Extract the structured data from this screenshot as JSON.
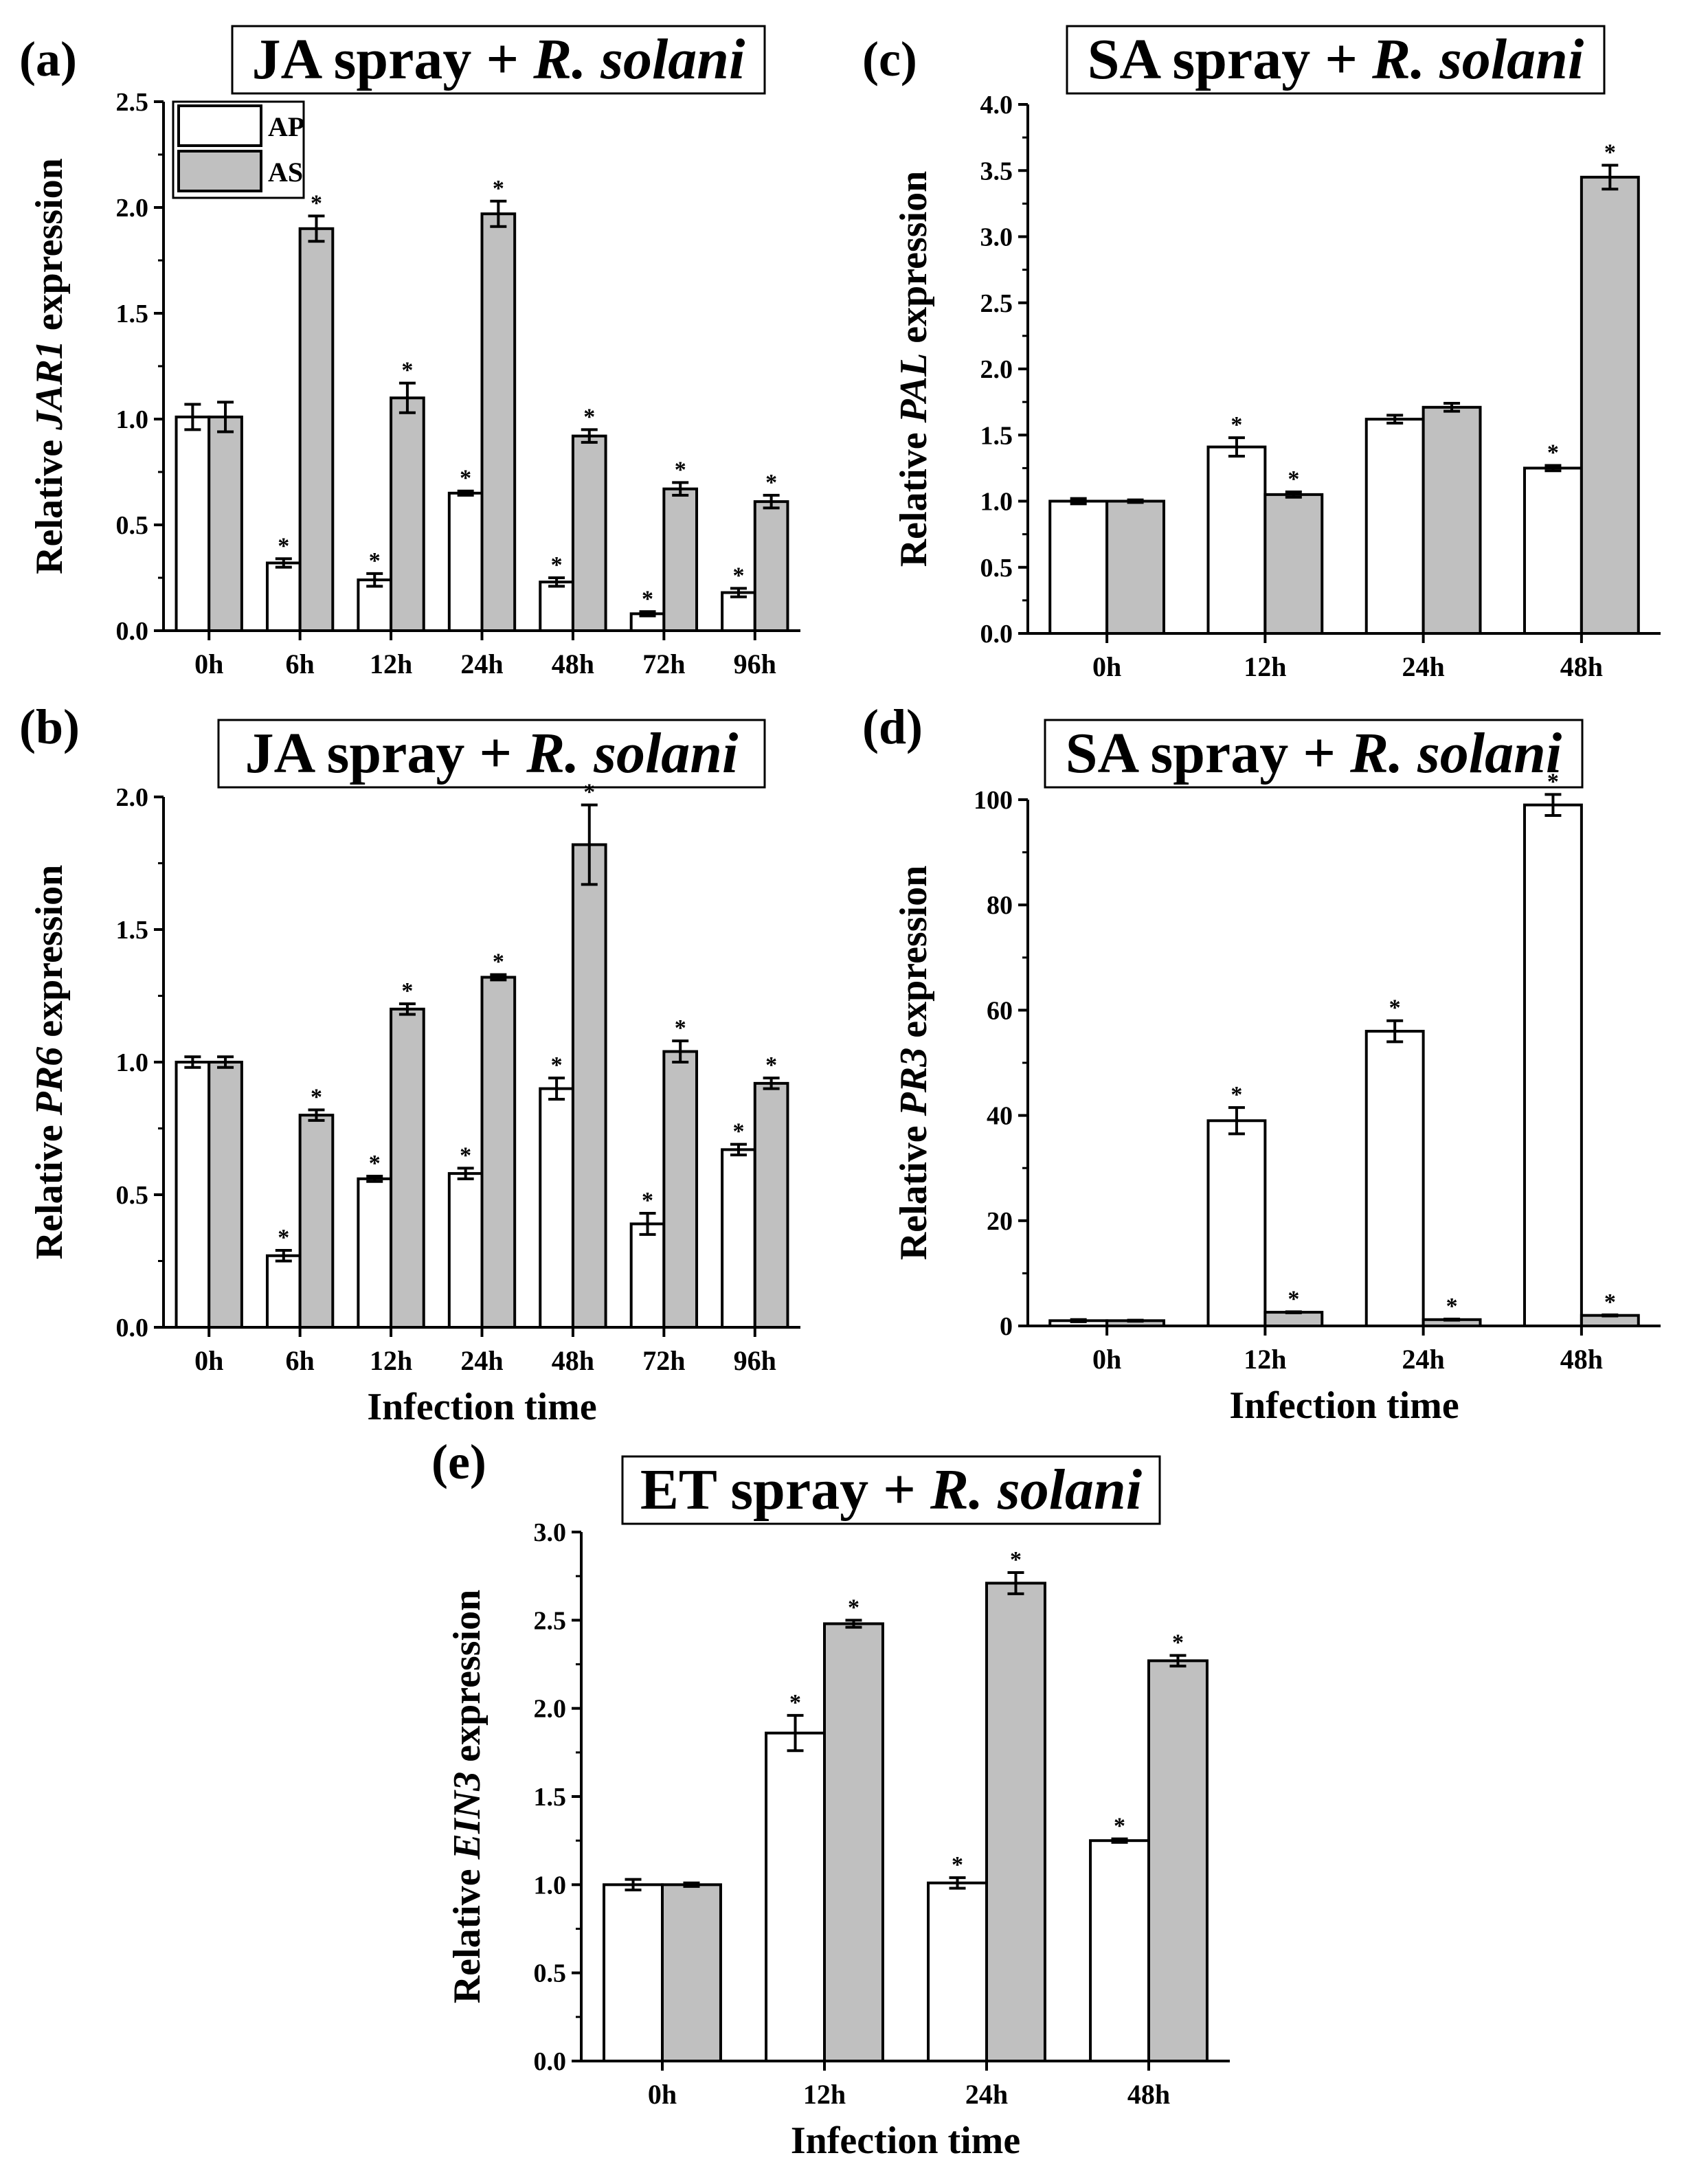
{
  "colors": {
    "ap_fill": "#ffffff",
    "as_fill": "#c0c0c0",
    "stroke": "#000000"
  },
  "chart_data": [
    {
      "id": "a",
      "type": "bar",
      "panel_label": "(a)",
      "title_prefix": "JA spray + ",
      "title_italic": "R. solani",
      "ylabel_prefix": "Relative ",
      "ylabel_italic": "JAR1",
      "ylabel_suffix": " expression",
      "xlabel": "",
      "categories": [
        "0h",
        "6h",
        "12h",
        "24h",
        "48h",
        "72h",
        "96h"
      ],
      "ylim": [
        0,
        2.5
      ],
      "yticks": [
        "0.0",
        "0.5",
        "1.0",
        "1.5",
        "2.0",
        "2.5"
      ],
      "legend": [
        "AP",
        "AS"
      ],
      "series": [
        {
          "name": "AP",
          "values": [
            1.01,
            0.32,
            0.24,
            0.65,
            0.23,
            0.08,
            0.18
          ],
          "errors": [
            0.06,
            0.02,
            0.03,
            0.01,
            0.02,
            0.01,
            0.02
          ],
          "significant": [
            false,
            true,
            true,
            true,
            true,
            true,
            true
          ]
        },
        {
          "name": "AS",
          "values": [
            1.01,
            1.9,
            1.1,
            1.97,
            0.92,
            0.67,
            0.61
          ],
          "errors": [
            0.07,
            0.06,
            0.07,
            0.06,
            0.03,
            0.03,
            0.03
          ],
          "significant": [
            false,
            true,
            true,
            true,
            true,
            true,
            true
          ]
        }
      ]
    },
    {
      "id": "b",
      "type": "bar",
      "panel_label": "(b)",
      "title_prefix": "JA spray + ",
      "title_italic": "R. solani",
      "ylabel_prefix": "Relative ",
      "ylabel_italic": "PR6",
      "ylabel_suffix": " expression",
      "xlabel": "Infection time",
      "categories": [
        "0h",
        "6h",
        "12h",
        "24h",
        "48h",
        "72h",
        "96h"
      ],
      "ylim": [
        0,
        2.0
      ],
      "yticks": [
        "0.0",
        "0.5",
        "1.0",
        "1.5",
        "2.0"
      ],
      "legend": [],
      "series": [
        {
          "name": "AP",
          "values": [
            1.0,
            0.27,
            0.56,
            0.58,
            0.9,
            0.39,
            0.67
          ],
          "errors": [
            0.02,
            0.02,
            0.01,
            0.02,
            0.04,
            0.04,
            0.02
          ],
          "significant": [
            false,
            true,
            true,
            true,
            true,
            true,
            true
          ]
        },
        {
          "name": "AS",
          "values": [
            1.0,
            0.8,
            1.2,
            1.32,
            1.82,
            1.04,
            0.92
          ],
          "errors": [
            0.02,
            0.02,
            0.02,
            0.01,
            0.15,
            0.04,
            0.02
          ],
          "significant": [
            false,
            true,
            true,
            true,
            true,
            true,
            true
          ]
        }
      ]
    },
    {
      "id": "c",
      "type": "bar",
      "panel_label": "(c)",
      "title_prefix": "SA spray + ",
      "title_italic": "R. solani",
      "ylabel_prefix": "Relative ",
      "ylabel_italic": "PAL",
      "ylabel_suffix": " expression",
      "xlabel": "",
      "categories": [
        "0h",
        "12h",
        "24h",
        "48h"
      ],
      "ylim": [
        0,
        4.0
      ],
      "yticks": [
        "0.0",
        "0.5",
        "1.0",
        "1.5",
        "2.0",
        "2.5",
        "3.0",
        "3.5",
        "4.0"
      ],
      "legend": [],
      "series": [
        {
          "name": "AP",
          "values": [
            1.0,
            1.41,
            1.62,
            1.25
          ],
          "errors": [
            0.02,
            0.07,
            0.03,
            0.02
          ],
          "significant": [
            false,
            true,
            false,
            true
          ]
        },
        {
          "name": "AS",
          "values": [
            1.0,
            1.05,
            1.71,
            3.45
          ],
          "errors": [
            0.01,
            0.02,
            0.03,
            0.09
          ],
          "significant": [
            false,
            true,
            false,
            true
          ]
        }
      ]
    },
    {
      "id": "d",
      "type": "bar",
      "panel_label": "(d)",
      "title_prefix": "SA spray + ",
      "title_italic": "R. solani",
      "ylabel_prefix": "Relative ",
      "ylabel_italic": "PR3",
      "ylabel_suffix": " expression",
      "xlabel": "Infection time",
      "categories": [
        "0h",
        "12h",
        "24h",
        "48h"
      ],
      "ylim": [
        0,
        100
      ],
      "yticks": [
        "0",
        "20",
        "40",
        "60",
        "80",
        "100"
      ],
      "legend": [],
      "series": [
        {
          "name": "AP",
          "values": [
            1.0,
            39.0,
            56.0,
            99.0
          ],
          "errors": [
            0.2,
            2.5,
            2.0,
            2.0
          ],
          "significant": [
            false,
            true,
            true,
            true
          ]
        },
        {
          "name": "AS",
          "values": [
            1.0,
            2.6,
            1.2,
            2.0
          ],
          "errors": [
            0.1,
            0.1,
            0.1,
            0.1
          ],
          "significant": [
            false,
            true,
            true,
            true
          ]
        }
      ]
    },
    {
      "id": "e",
      "type": "bar",
      "panel_label": "(e)",
      "title_prefix": "ET spray + ",
      "title_italic": "R. solani",
      "ylabel_prefix": "Relative ",
      "ylabel_italic": "EIN3",
      "ylabel_suffix": " expression",
      "xlabel": "Infection time",
      "categories": [
        "0h",
        "12h",
        "24h",
        "48h"
      ],
      "ylim": [
        0,
        3.0
      ],
      "yticks": [
        "0.0",
        "0.5",
        "1.0",
        "1.5",
        "2.0",
        "2.5",
        "3.0"
      ],
      "legend": [],
      "series": [
        {
          "name": "AP",
          "values": [
            1.0,
            1.86,
            1.01,
            1.25
          ],
          "errors": [
            0.03,
            0.1,
            0.03,
            0.01
          ],
          "significant": [
            false,
            true,
            true,
            true
          ]
        },
        {
          "name": "AS",
          "values": [
            1.0,
            2.48,
            2.71,
            2.27
          ],
          "errors": [
            0.01,
            0.02,
            0.06,
            0.03
          ],
          "significant": [
            false,
            true,
            true,
            true
          ]
        }
      ]
    }
  ]
}
